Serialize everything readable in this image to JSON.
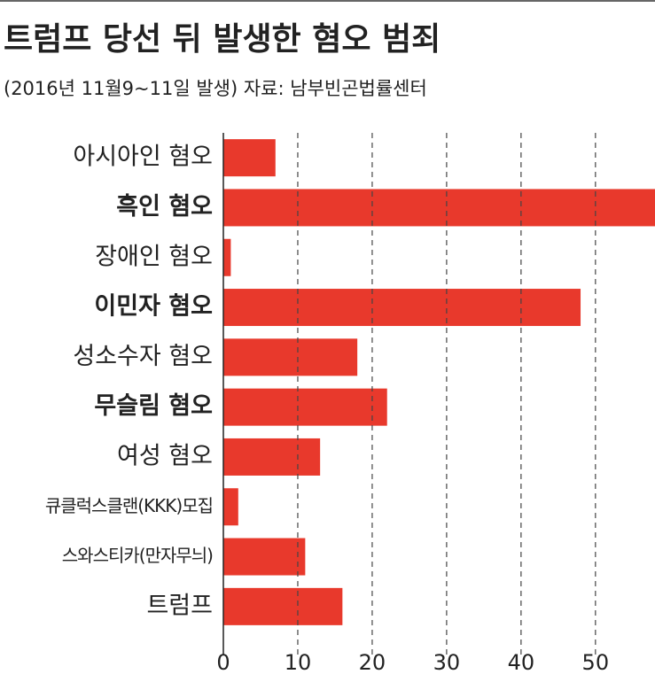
{
  "chart_data": {
    "type": "bar",
    "orientation": "horizontal",
    "title": "트럼프 당선 뒤 발생한 혐오 범죄",
    "subtitle": "(2016년 11월9~11일 발생) 자료: 남부빈곤법률센터",
    "categories": [
      "아시아인 혐오",
      "흑인 혐오",
      "장애인 혐오",
      "이민자 혐오",
      "성소수자 혐오",
      "무슬림 혐오",
      "여성 혐오",
      "큐클럭스클랜(KKK)모집",
      "스와스티카(만자무늬)",
      "트럼프"
    ],
    "values": [
      7,
      58,
      1,
      48,
      18,
      22,
      13,
      2,
      11,
      16
    ],
    "color": "#e8392c",
    "label_colors": [
      "#222222",
      "#e8392c",
      "#222222",
      "#e8392c",
      "#222222",
      "#e8392c",
      "#222222",
      "#222222",
      "#222222",
      "#222222"
    ],
    "xlim": [
      0,
      58
    ],
    "xticks": [
      0,
      10,
      20,
      30,
      40,
      50
    ],
    "grid": true
  }
}
